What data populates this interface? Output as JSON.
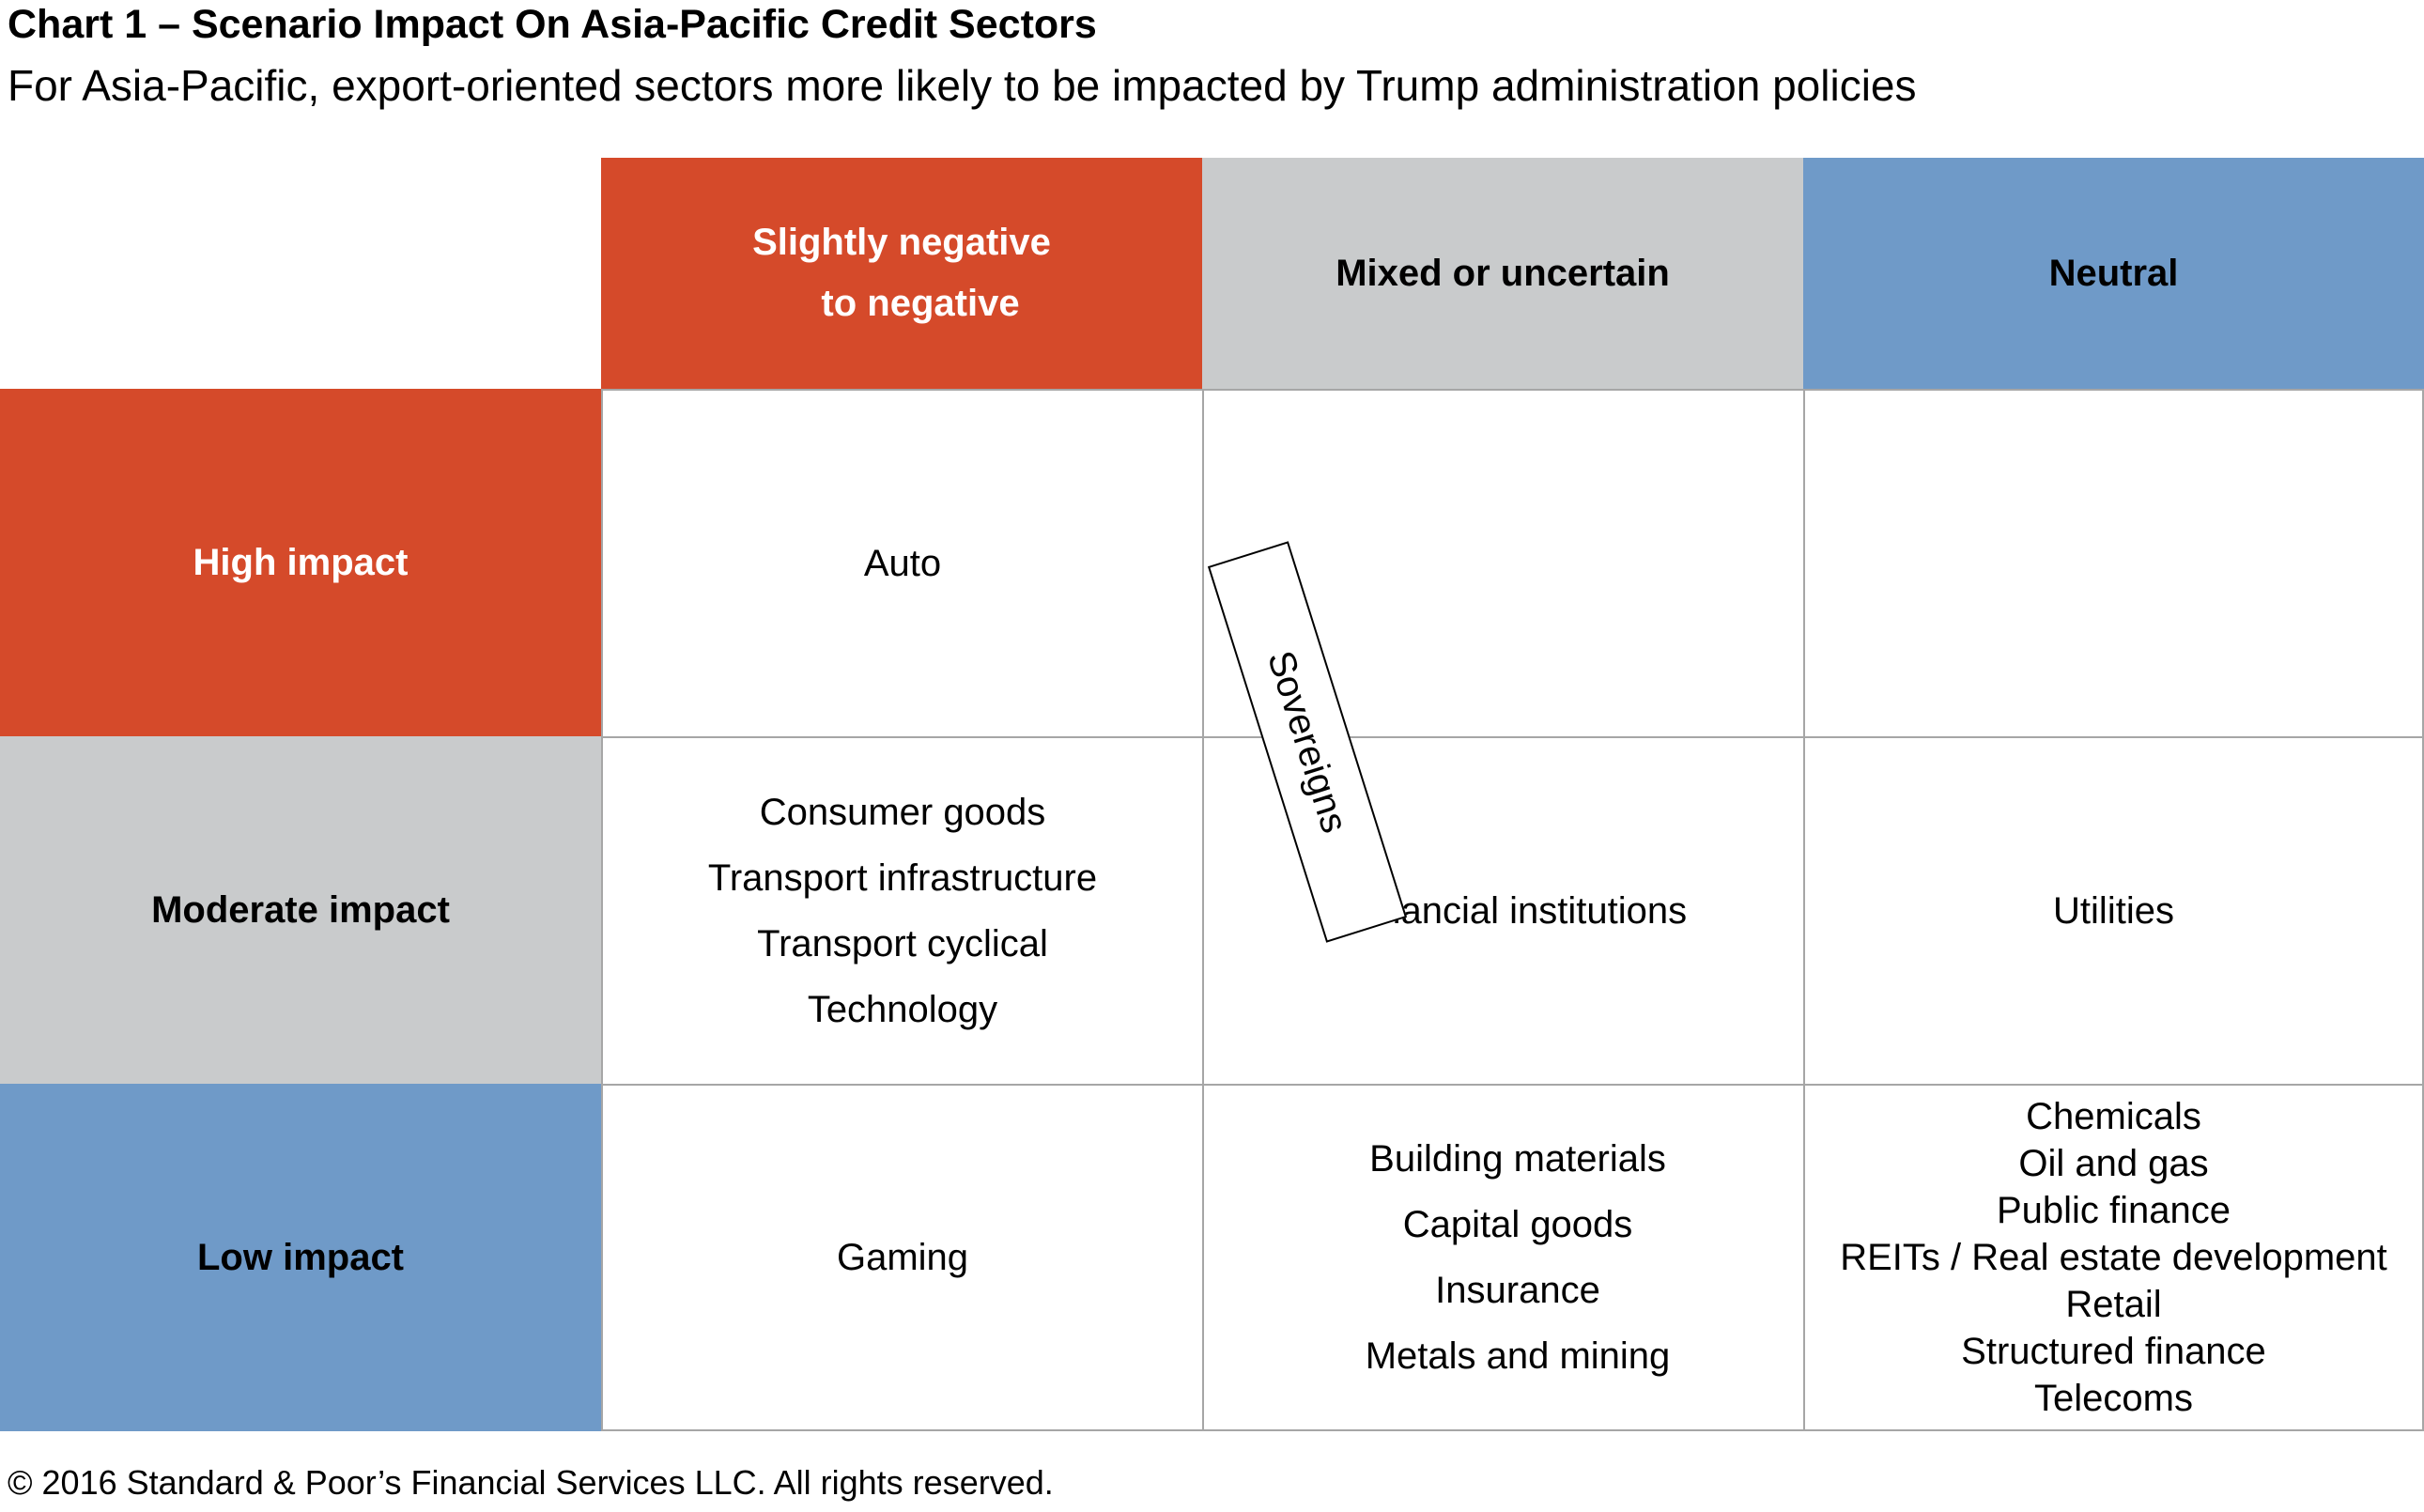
{
  "title": "Chart 1 – Scenario Impact On Asia-Pacific Credit Sectors",
  "subtitle": "For Asia-Pacific, export-oriented sectors more likely to be impacted by Trump administration policies",
  "columns": [
    {
      "label_line1": "Slightly negative",
      "label_line2": "to negative",
      "color": "#d54a2a"
    },
    {
      "label": "Mixed or uncertain",
      "color": "#c9cbcc"
    },
    {
      "label": "Neutral",
      "color": "#6f9ac8"
    }
  ],
  "rows": [
    {
      "label": "High impact",
      "color": "#d54a2a"
    },
    {
      "label": "Moderate impact",
      "color": "#c9cbcc"
    },
    {
      "label": "Low impact",
      "color": "#6f9ac8"
    }
  ],
  "cells": {
    "high_negative": [
      "Auto"
    ],
    "high_mixed": [],
    "high_neutral": [],
    "moderate_negative": [
      "Consumer goods",
      "Transport infrastructure",
      "Transport cyclical",
      "Technology"
    ],
    "moderate_mixed": [
      "Financial institutions"
    ],
    "moderate_neutral": [
      "Utilities"
    ],
    "low_negative": [
      "Gaming"
    ],
    "low_mixed": [
      "Building materials",
      "Capital goods",
      "Insurance",
      "Metals and mining"
    ],
    "low_neutral": [
      "Chemicals",
      "Oil and gas",
      "Public finance",
      "REITs / Real estate development",
      "Retail",
      "Structured finance",
      "Telecoms"
    ]
  },
  "overlay_label": "Sovereigns",
  "footer": "© 2016 Standard & Poor’s Financial Services LLC. All rights reserved."
}
